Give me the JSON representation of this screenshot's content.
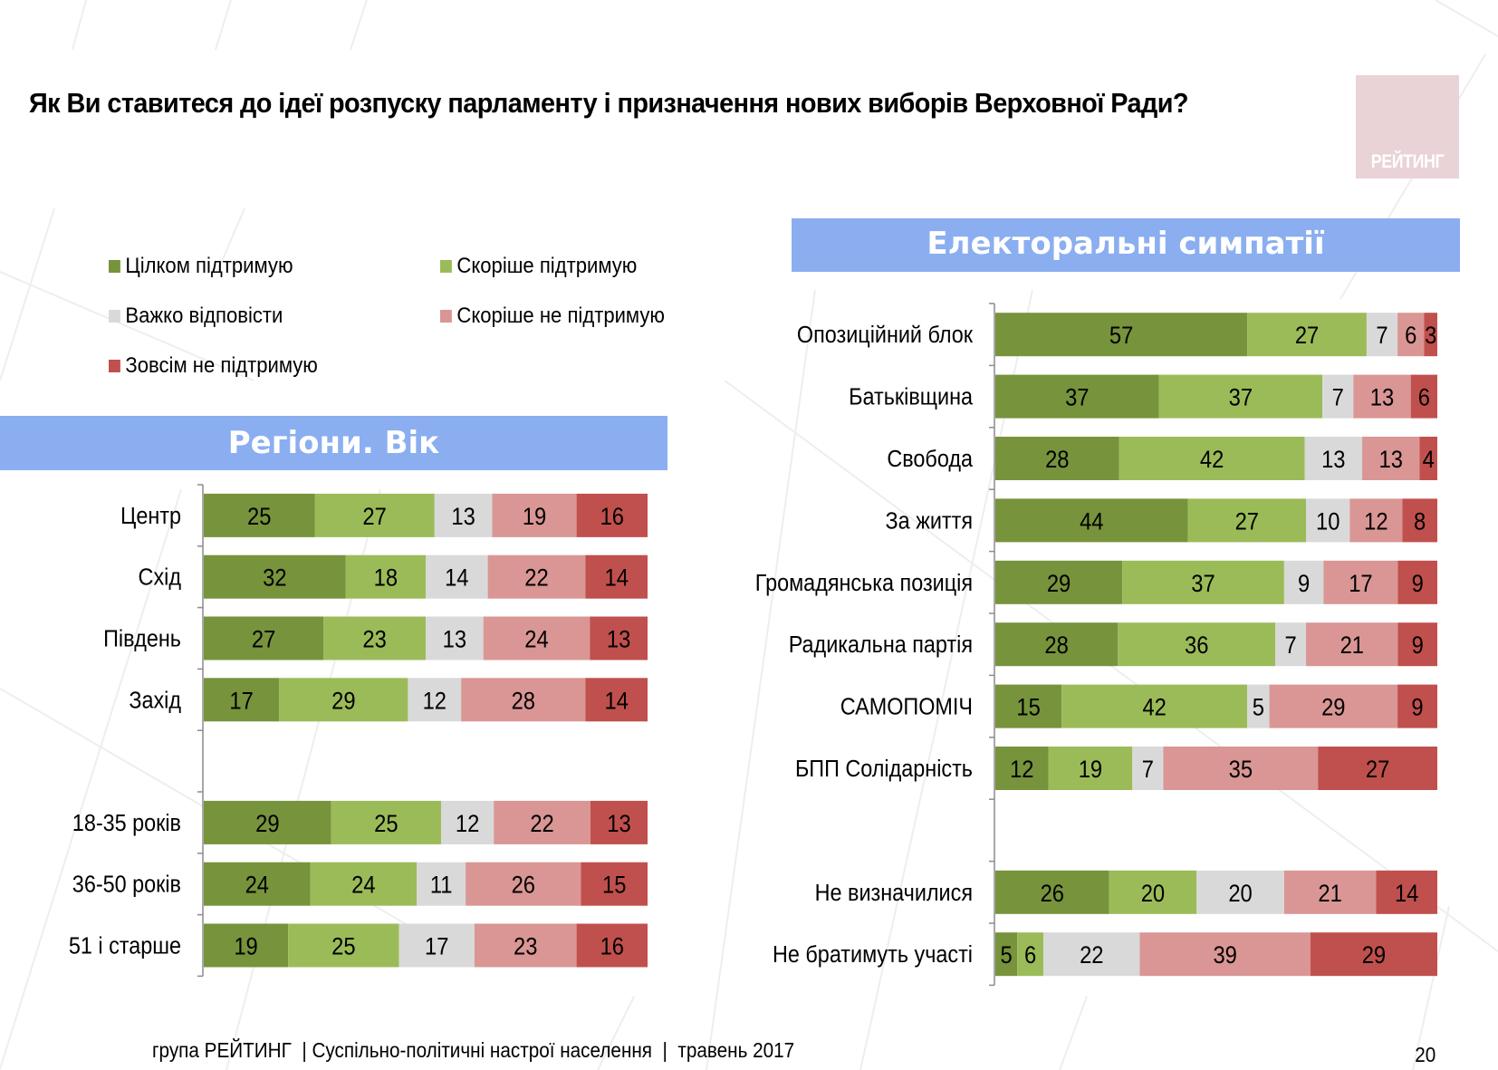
{
  "title": "Як Ви ставитеся до ідеї розпуску парламенту і призначення нових виборів Верховної Ради?",
  "logo": {
    "text": "РЕЙТИНГ",
    "color": "#e9d3d6"
  },
  "footer": {
    "source": "група РЕЙТИНГ  | Суспільно-політичні настрої населення  |  травень 2017",
    "page_number": "20"
  },
  "legend": [
    {
      "label": "Цілком підтримую",
      "color": "#77933c"
    },
    {
      "label": "Скоріше  підтримую",
      "color": "#9bbb59"
    },
    {
      "label": "Важко відповісти",
      "color": "#d9d9d9"
    },
    {
      "label": "Скоріше не підтримую",
      "color": "#d99694"
    },
    {
      "label": "Зовсім не підтримую",
      "color": "#c0504d"
    }
  ],
  "chart_data": [
    {
      "type": "bar",
      "orientation": "horizontal-stacked-100",
      "title": "Регіони. Вік",
      "series_names": [
        "Цілком підтримую",
        "Скоріше  підтримую",
        "Важко відповісти",
        "Скоріше не підтримую",
        "Зовсім не підтримую"
      ],
      "categories": [
        "Центр",
        "Схід",
        "Південь",
        "Захід",
        "",
        "18-35 років",
        "36-50 років",
        "51 і старше"
      ],
      "values": [
        [
          25,
          27,
          13,
          19,
          16
        ],
        [
          32,
          18,
          14,
          22,
          14
        ],
        [
          27,
          23,
          13,
          24,
          13
        ],
        [
          17,
          29,
          12,
          28,
          14
        ],
        null,
        [
          29,
          25,
          12,
          22,
          13
        ],
        [
          24,
          24,
          11,
          26,
          15
        ],
        [
          19,
          25,
          17,
          23,
          16
        ]
      ],
      "xlim": [
        0,
        100
      ],
      "grid": false
    },
    {
      "type": "bar",
      "orientation": "horizontal-stacked-100",
      "title": "Електоральні симпатії",
      "series_names": [
        "Цілком підтримую",
        "Скоріше  підтримую",
        "Важко відповісти",
        "Скоріше не підтримую",
        "Зовсім не підтримую"
      ],
      "categories": [
        "Опозиційний блок",
        "Батьківщина",
        "Свобода",
        "За життя",
        "Громадянська позиція",
        "Радикальна партія",
        "САМОПОМІЧ",
        "БПП Солідарність",
        "",
        "Не визначилися",
        "Не братимуть участі"
      ],
      "values": [
        [
          57,
          27,
          7,
          6,
          3
        ],
        [
          37,
          37,
          7,
          13,
          6
        ],
        [
          28,
          42,
          13,
          13,
          4
        ],
        [
          44,
          27,
          10,
          12,
          8
        ],
        [
          29,
          37,
          9,
          17,
          9
        ],
        [
          28,
          36,
          7,
          21,
          9
        ],
        [
          15,
          42,
          5,
          29,
          9
        ],
        [
          12,
          19,
          7,
          35,
          27
        ],
        null,
        [
          26,
          20,
          20,
          21,
          14
        ],
        [
          5,
          6,
          22,
          39,
          29
        ]
      ],
      "xlim": [
        0,
        100
      ],
      "grid": false
    }
  ]
}
